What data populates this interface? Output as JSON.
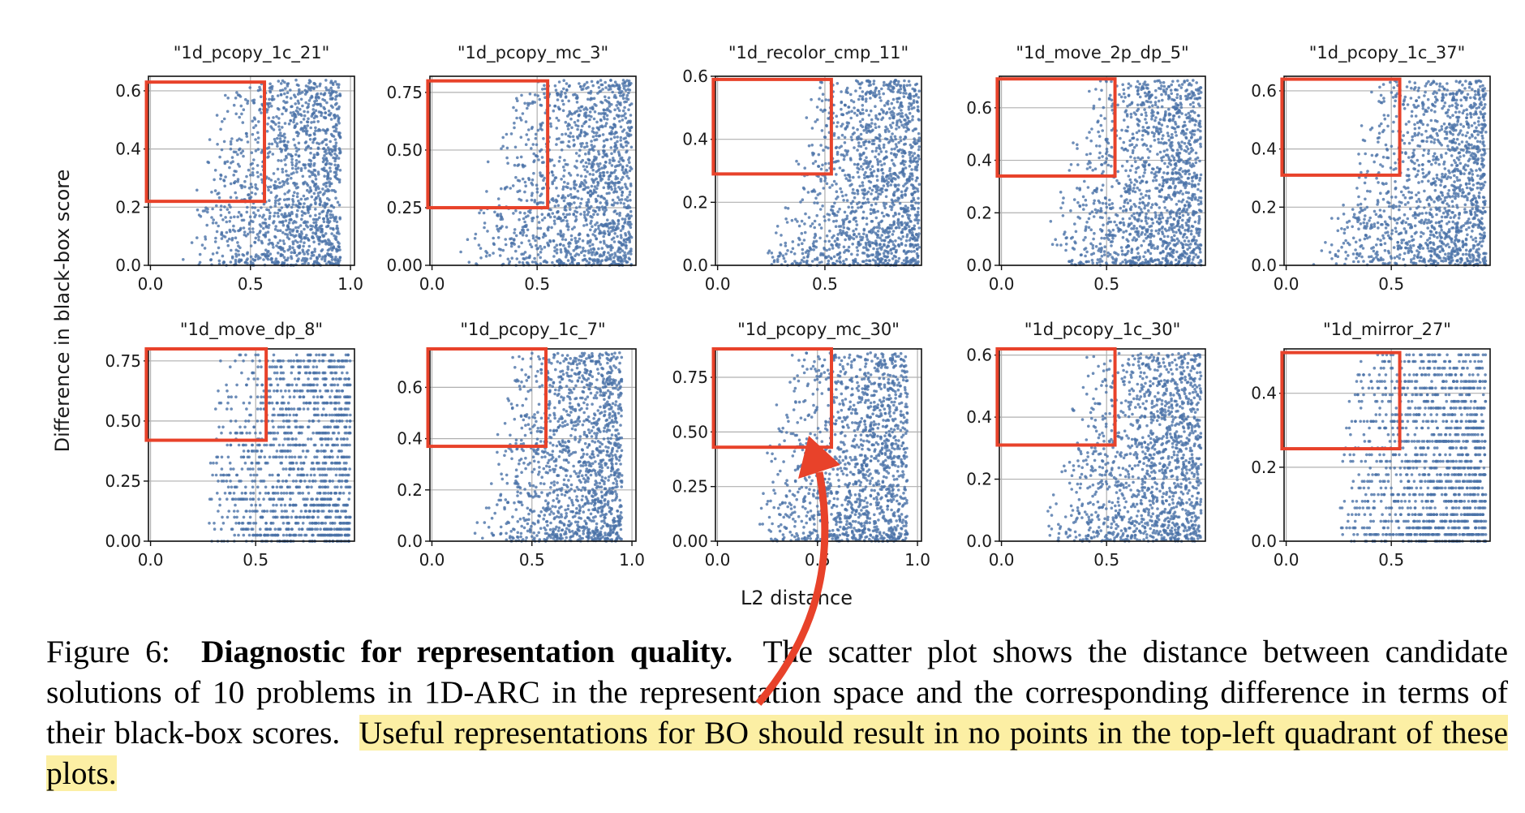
{
  "figure": {
    "ylabel": "Difference in black-box score",
    "xlabel": "L2 distance",
    "caption": {
      "label": "Figure 6:",
      "bold": "Diagnostic for representation quality.",
      "text": "The scatter plot shows the distance between candidate solutions of 10 problems in 1D-ARC in the representation space and the corresponding difference in terms of their black-box scores.",
      "highlighted": "Useful representations for BO should result in no points in the top-left quadrant of these plots."
    },
    "colors": {
      "points": "#4a72a8",
      "highlight_box": "#e8422a",
      "arrow": "#e8422a",
      "text_highlight": "#fcefa4",
      "grid": "#b0b0b0"
    }
  },
  "chart_data": [
    {
      "type": "scatter",
      "title": "\"1d_pcopy_1c_21\"",
      "xlim": [
        -0.01,
        1.02
      ],
      "ylim": [
        0,
        0.65
      ],
      "xticks": [
        "0.0",
        "0.5",
        "1.0"
      ],
      "yticks": [
        "0.0",
        "0.2",
        "0.4",
        "0.6"
      ],
      "grid": true,
      "highlight_box": {
        "x": [
          -0.02,
          0.57
        ],
        "y": [
          0.22,
          0.63
        ]
      }
    },
    {
      "type": "scatter",
      "title": "\"1d_pcopy_mc_3\"",
      "xlim": [
        -0.01,
        0.97
      ],
      "ylim": [
        0,
        0.82
      ],
      "xticks": [
        "0.0",
        "0.5"
      ],
      "yticks": [
        "0.00",
        "0.25",
        "0.50",
        "0.75"
      ],
      "grid": true,
      "highlight_box": {
        "x": [
          -0.02,
          0.55
        ],
        "y": [
          0.25,
          0.8
        ]
      }
    },
    {
      "type": "scatter",
      "title": "\"1d_recolor_cmp_11\"",
      "xlim": [
        -0.01,
        0.95
      ],
      "ylim": [
        0,
        0.6
      ],
      "xticks": [
        "0.0",
        "0.5"
      ],
      "yticks": [
        "0.0",
        "0.2",
        "0.4",
        "0.6"
      ],
      "grid": true,
      "highlight_box": {
        "x": [
          -0.02,
          0.53
        ],
        "y": [
          0.29,
          0.59
        ]
      }
    },
    {
      "type": "scatter",
      "title": "\"1d_move_2p_dp_5\"",
      "xlim": [
        -0.01,
        0.97
      ],
      "ylim": [
        0,
        0.72
      ],
      "xticks": [
        "0.0",
        "0.5"
      ],
      "yticks": [
        "0.0",
        "0.2",
        "0.4",
        "0.6"
      ],
      "grid": true,
      "highlight_box": {
        "x": [
          -0.02,
          0.54
        ],
        "y": [
          0.34,
          0.71
        ]
      }
    },
    {
      "type": "scatter",
      "title": "\"1d_pcopy_1c_37\"",
      "xlim": [
        -0.01,
        0.97
      ],
      "ylim": [
        0,
        0.65
      ],
      "xticks": [
        "0.0",
        "0.5"
      ],
      "yticks": [
        "0.0",
        "0.2",
        "0.4",
        "0.6"
      ],
      "grid": true,
      "highlight_box": {
        "x": [
          -0.02,
          0.54
        ],
        "y": [
          0.31,
          0.64
        ]
      }
    },
    {
      "type": "scatter",
      "title": "\"1d_move_dp_8\"",
      "xlim": [
        -0.01,
        0.97
      ],
      "ylim": [
        0,
        0.8
      ],
      "xticks": [
        "0.0",
        "0.5"
      ],
      "yticks": [
        "0.00",
        "0.25",
        "0.50",
        "0.75"
      ],
      "grid": true,
      "highlight_box": {
        "x": [
          -0.02,
          0.55
        ],
        "y": [
          0.42,
          0.8
        ]
      }
    },
    {
      "type": "scatter",
      "title": "\"1d_pcopy_1c_7\"",
      "xlim": [
        -0.01,
        1.02
      ],
      "ylim": [
        0,
        0.75
      ],
      "xticks": [
        "0.0",
        "0.5",
        "1.0"
      ],
      "yticks": [
        "0.0",
        "0.2",
        "0.4",
        "0.6"
      ],
      "grid": true,
      "highlight_box": {
        "x": [
          -0.02,
          0.57
        ],
        "y": [
          0.37,
          0.75
        ]
      }
    },
    {
      "type": "scatter",
      "title": "\"1d_pcopy_mc_30\"",
      "xlim": [
        -0.01,
        1.02
      ],
      "ylim": [
        0,
        0.88
      ],
      "xticks": [
        "0.0",
        "0.5",
        "1.0"
      ],
      "yticks": [
        "0.00",
        "0.25",
        "0.50",
        "0.75"
      ],
      "grid": true,
      "highlight_box": {
        "x": [
          -0.02,
          0.57
        ],
        "y": [
          0.43,
          0.88
        ]
      }
    },
    {
      "type": "scatter",
      "title": "\"1d_pcopy_1c_30\"",
      "xlim": [
        -0.01,
        0.97
      ],
      "ylim": [
        0,
        0.62
      ],
      "xticks": [
        "0.0",
        "0.5"
      ],
      "yticks": [
        "0.0",
        "0.2",
        "0.4",
        "0.6"
      ],
      "grid": true,
      "highlight_box": {
        "x": [
          -0.02,
          0.54
        ],
        "y": [
          0.31,
          0.62
        ]
      }
    },
    {
      "type": "scatter",
      "title": "\"1d_mirror_27\"",
      "xlim": [
        -0.01,
        0.97
      ],
      "ylim": [
        0,
        0.52
      ],
      "xticks": [
        "0.0",
        "0.5"
      ],
      "yticks": [
        "0.0",
        "0.2",
        "0.4"
      ],
      "grid": true,
      "highlight_box": {
        "x": [
          -0.02,
          0.54
        ],
        "y": [
          0.25,
          0.51
        ]
      }
    }
  ]
}
